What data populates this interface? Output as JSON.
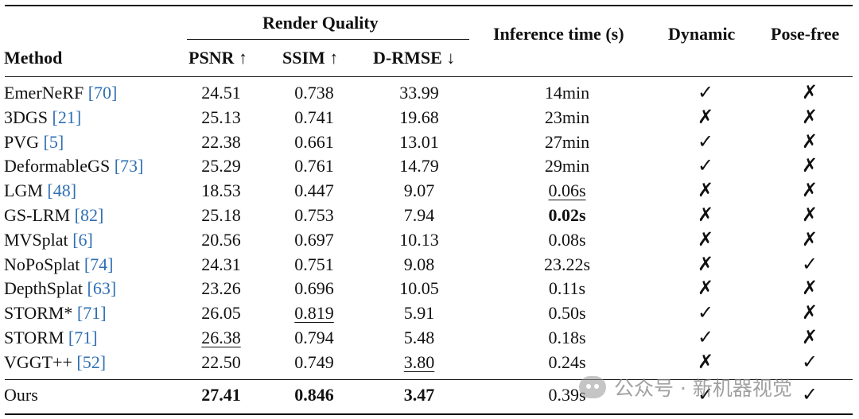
{
  "headers": {
    "method": "Method",
    "render_quality": "Render Quality",
    "psnr": "PSNR ↑",
    "ssim": "SSIM ↑",
    "drmse": "D-RMSE ↓",
    "inference_time": "Inference time (s)",
    "dynamic": "Dynamic",
    "pose_free": "Pose-free"
  },
  "rows": [
    {
      "name": "EmerNeRF",
      "cite": "[70]",
      "psnr": "24.51",
      "ssim": "0.738",
      "drmse": "33.99",
      "time": "14min",
      "dynamic": "✓",
      "pose_free": "✗"
    },
    {
      "name": "3DGS",
      "cite": "[21]",
      "psnr": "25.13",
      "ssim": "0.741",
      "drmse": "19.68",
      "time": "23min",
      "dynamic": "✗",
      "pose_free": "✗"
    },
    {
      "name": "PVG",
      "cite": "[5]",
      "psnr": "22.38",
      "ssim": "0.661",
      "drmse": "13.01",
      "time": "27min",
      "dynamic": "✓",
      "pose_free": "✗"
    },
    {
      "name": "DeformableGS",
      "cite": "[73]",
      "psnr": "25.29",
      "ssim": "0.761",
      "drmse": "14.79",
      "time": "29min",
      "dynamic": "✓",
      "pose_free": "✗"
    },
    {
      "name": "LGM",
      "cite": "[48]",
      "psnr": "18.53",
      "ssim": "0.447",
      "drmse": "9.07",
      "time": "0.06s",
      "dynamic": "✗",
      "pose_free": "✗"
    },
    {
      "name": "GS-LRM",
      "cite": "[82]",
      "psnr": "25.18",
      "ssim": "0.753",
      "drmse": "7.94",
      "time": "0.02s",
      "dynamic": "✗",
      "pose_free": "✗"
    },
    {
      "name": "MVSplat",
      "cite": "[6]",
      "psnr": "20.56",
      "ssim": "0.697",
      "drmse": "10.13",
      "time": "0.08s",
      "dynamic": "✗",
      "pose_free": "✗"
    },
    {
      "name": "NoPoSplat",
      "cite": "[74]",
      "psnr": "24.31",
      "ssim": "0.751",
      "drmse": "9.08",
      "time": "23.22s",
      "dynamic": "✗",
      "pose_free": "✓"
    },
    {
      "name": "DepthSplat",
      "cite": "[63]",
      "psnr": "23.26",
      "ssim": "0.696",
      "drmse": "10.05",
      "time": "0.11s",
      "dynamic": "✗",
      "pose_free": "✗"
    },
    {
      "name": "STORM*",
      "cite": "[71]",
      "psnr": "26.05",
      "ssim": "0.819",
      "drmse": "5.91",
      "time": "0.50s",
      "dynamic": "✓",
      "pose_free": "✗"
    },
    {
      "name": "STORM",
      "cite": "[71]",
      "psnr": "26.38",
      "ssim": "0.794",
      "drmse": "5.48",
      "time": "0.18s",
      "dynamic": "✓",
      "pose_free": "✗"
    },
    {
      "name": "VGGT++",
      "cite": "[52]",
      "psnr": "22.50",
      "ssim": "0.749",
      "drmse": "3.80",
      "time": "0.24s",
      "dynamic": "✗",
      "pose_free": "✓"
    }
  ],
  "ours": {
    "name": "Ours",
    "psnr": "27.41",
    "ssim": "0.846",
    "drmse": "3.47",
    "time": "0.39s",
    "dynamic": "✓",
    "pose_free": "✓"
  },
  "watermark": "公众号 · 新机器视觉",
  "colors": {
    "citation": "#2f6fb3"
  }
}
